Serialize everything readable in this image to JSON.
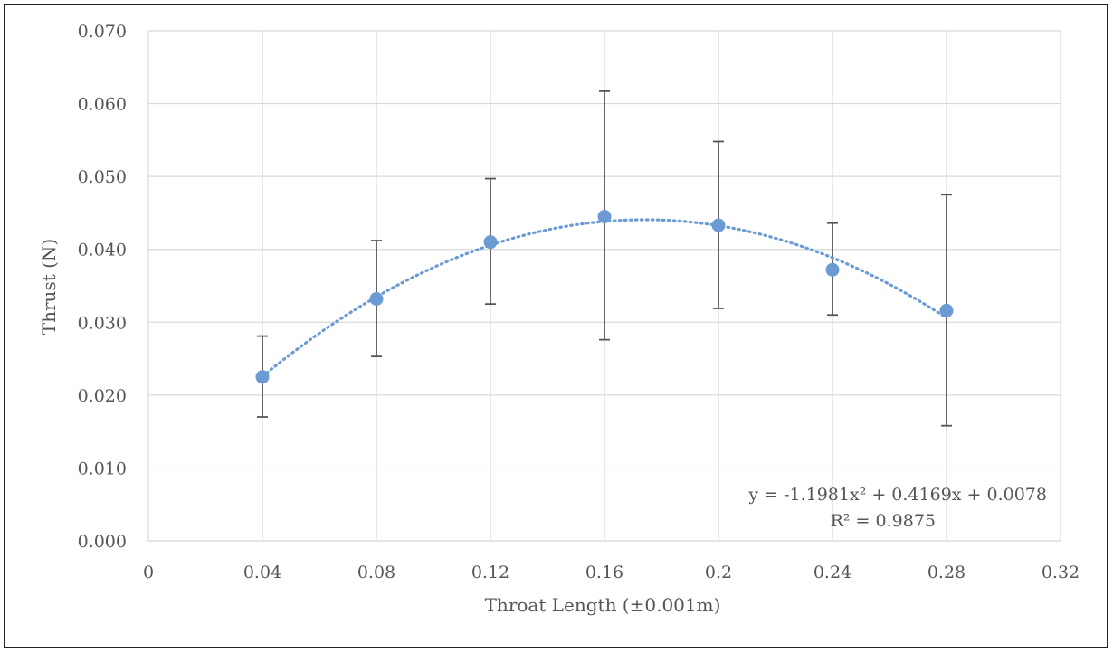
{
  "chart_data": {
    "type": "scatter",
    "title": "",
    "xlabel": "Throat Length (±0.001m)",
    "ylabel": "Thrust (N)",
    "xlim": [
      0,
      0.32
    ],
    "ylim": [
      0,
      0.07
    ],
    "x_ticks": [
      0,
      0.04,
      0.08,
      0.12,
      0.16,
      0.2,
      0.24,
      0.28,
      0.32
    ],
    "x_tick_labels": [
      "0",
      "0.04",
      "0.08",
      "0.12",
      "0.16",
      "0.2",
      "0.24",
      "0.28",
      "0.32"
    ],
    "y_ticks": [
      0,
      0.01,
      0.02,
      0.03,
      0.04,
      0.05,
      0.06,
      0.07
    ],
    "y_tick_labels": [
      "0.000",
      "0.010",
      "0.020",
      "0.030",
      "0.040",
      "0.050",
      "0.060",
      "0.070"
    ],
    "grid": true,
    "series": [
      {
        "x": [
          0.04,
          0.08,
          0.12,
          0.16,
          0.2,
          0.24,
          0.28
        ],
        "y": [
          0.0225,
          0.0332,
          0.041,
          0.0445,
          0.0433,
          0.0372,
          0.0316
        ],
        "error_low": [
          0.017,
          0.0253,
          0.0325,
          0.0276,
          0.0319,
          0.031,
          0.0158
        ],
        "error_high": [
          0.0281,
          0.0412,
          0.0497,
          0.0617,
          0.0548,
          0.0436,
          0.0475
        ],
        "color": "#6b9bd2"
      }
    ],
    "trendline": {
      "type": "polynomial",
      "coefficients": [
        -1.1981,
        0.4169,
        0.0078
      ],
      "x_range": [
        0.04,
        0.28
      ],
      "color": "#6b9bd2",
      "equation_label": "y = -1.1981x² + 0.4169x + 0.0078",
      "r2_label": "R² = 0.9875"
    }
  }
}
